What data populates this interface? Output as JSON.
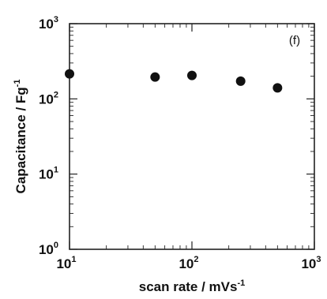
{
  "chart_data": {
    "type": "scatter",
    "panel_label": "(f)",
    "xlabel": {
      "text": "scan rate / mVs",
      "superscript": "-1"
    },
    "ylabel": {
      "text": "Capacitance / Fg",
      "superscript": "-1"
    },
    "x_scale": "log",
    "y_scale": "log",
    "xlim": [
      10,
      1000
    ],
    "ylim": [
      1,
      1000
    ],
    "x_ticks": [
      {
        "base": "10",
        "exp": "1"
      },
      {
        "base": "10",
        "exp": "2"
      },
      {
        "base": "10",
        "exp": "3"
      }
    ],
    "y_ticks": [
      {
        "base": "10",
        "exp": "0"
      },
      {
        "base": "10",
        "exp": "1"
      },
      {
        "base": "10",
        "exp": "2"
      },
      {
        "base": "10",
        "exp": "3"
      }
    ],
    "grid": false,
    "series": [
      {
        "marker": "filled-circle",
        "color": "#111111",
        "points": [
          {
            "x": 10,
            "y": 215
          },
          {
            "x": 50,
            "y": 195
          },
          {
            "x": 100,
            "y": 205
          },
          {
            "x": 250,
            "y": 172
          },
          {
            "x": 500,
            "y": 140
          }
        ]
      }
    ]
  }
}
